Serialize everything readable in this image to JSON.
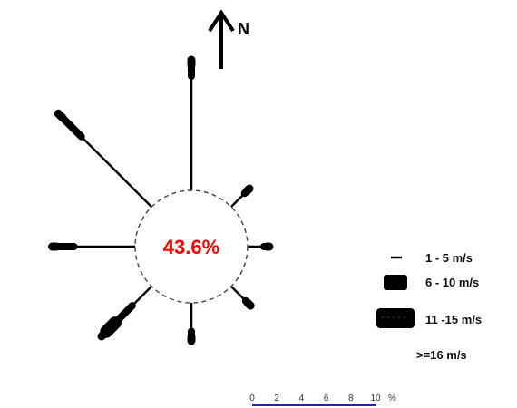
{
  "chart_data": {
    "type": "wind-rose",
    "north_label": "N",
    "calm": {
      "text": "43.6%",
      "color": "#ff0000"
    },
    "speed_classes": [
      {
        "label": "1 - 5 m/s"
      },
      {
        "label": "6 - 10 m/s"
      },
      {
        "label": "11 -15 m/s"
      },
      {
        "label": ">=16 m/s"
      }
    ],
    "directions": [
      {
        "dir": "N",
        "angle": 0,
        "values": [
          8.4,
          0.8,
          0.0,
          0.4
        ]
      },
      {
        "dir": "NE",
        "angle": 45,
        "values": [
          1.4,
          0.2,
          0.0,
          0.3
        ]
      },
      {
        "dir": "E",
        "angle": 90,
        "values": [
          1.2,
          0.2,
          0.0,
          0.2
        ]
      },
      {
        "dir": "SE",
        "angle": 135,
        "values": [
          1.5,
          0.2,
          0.0,
          0.3
        ]
      },
      {
        "dir": "S",
        "angle": 180,
        "values": [
          2.1,
          0.4,
          0.0,
          0.3
        ]
      },
      {
        "dir": "SW",
        "angle": 225,
        "values": [
          2.0,
          1.8,
          0.9,
          0.5
        ]
      },
      {
        "dir": "W",
        "angle": 270,
        "values": [
          4.5,
          1.3,
          0.0,
          0.3
        ]
      },
      {
        "dir": "NW",
        "angle": 315,
        "values": [
          7.3,
          2.0,
          0.0,
          0.4
        ]
      }
    ],
    "scale": {
      "ticks": [
        "0",
        "2",
        "4",
        "6",
        "8",
        "10"
      ],
      "unit": "%",
      "range": [
        0,
        10
      ],
      "color": "#2222bb"
    }
  }
}
